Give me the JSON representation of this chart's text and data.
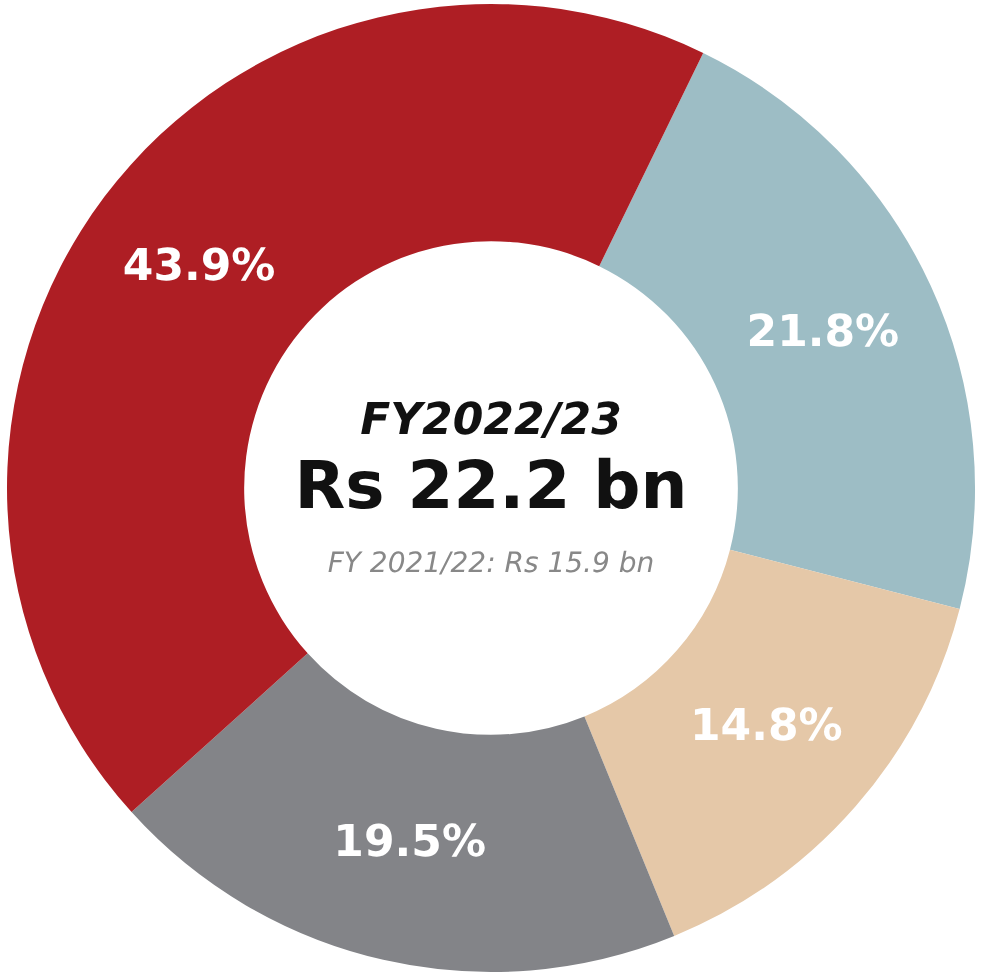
{
  "chart_data": {
    "type": "donut",
    "categories": [
      null,
      null,
      null,
      null
    ],
    "values": [
      21.8,
      14.8,
      19.5,
      43.9
    ],
    "colors": [
      "#9dbdc5",
      "#e5c8a8",
      "#838488",
      "#ae1e24"
    ],
    "value_labels": [
      "21.8%",
      "14.8%",
      "19.5%",
      "43.9%"
    ],
    "annotations": [
      "FY2022/23",
      "Rs 22.2 bn",
      "FY 2021/22: Rs 15.9 bn"
    ]
  }
}
